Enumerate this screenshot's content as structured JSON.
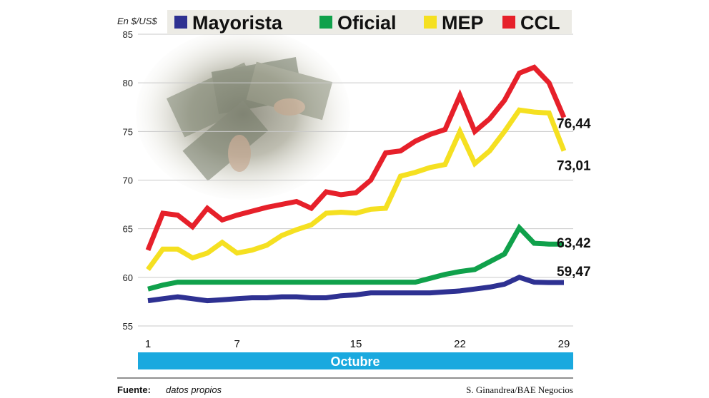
{
  "chart_data": {
    "type": "line",
    "unit_label": "En $/US$",
    "ylim": [
      55,
      85
    ],
    "y_ticks": [
      55,
      60,
      65,
      70,
      75,
      80,
      85
    ],
    "x_ticks": [
      1,
      7,
      15,
      22,
      29
    ],
    "x_category_label": "Octubre",
    "grid": true,
    "legend_position": "top",
    "x": [
      1,
      2,
      3,
      4,
      5,
      6,
      7,
      8,
      9,
      10,
      11,
      12,
      13,
      14,
      15,
      16,
      17,
      18,
      19,
      20,
      21,
      22,
      23,
      24,
      25,
      26,
      27,
      28,
      29
    ],
    "series": [
      {
        "name": "Mayorista",
        "color": "#2e3192",
        "end_label": "59,47",
        "values": [
          57.6,
          57.8,
          58.0,
          57.8,
          57.6,
          57.7,
          57.8,
          57.9,
          57.9,
          58.0,
          58.0,
          57.9,
          57.9,
          58.1,
          58.2,
          58.4,
          58.4,
          58.4,
          58.4,
          58.4,
          58.5,
          58.6,
          58.8,
          59.0,
          59.3,
          60.0,
          59.5,
          59.47,
          59.47
        ]
      },
      {
        "name": "Oficial",
        "color": "#10a14b",
        "end_label": "63,42",
        "values": [
          58.8,
          59.2,
          59.5,
          59.5,
          59.5,
          59.5,
          59.5,
          59.5,
          59.5,
          59.5,
          59.5,
          59.5,
          59.5,
          59.5,
          59.5,
          59.5,
          59.5,
          59.5,
          59.5,
          59.9,
          60.3,
          60.6,
          60.8,
          61.6,
          62.4,
          65.1,
          63.5,
          63.42,
          63.42
        ]
      },
      {
        "name": "MEP",
        "color": "#f5e021",
        "end_label": "73,01",
        "values": [
          60.8,
          62.9,
          62.9,
          62.0,
          62.5,
          63.6,
          62.5,
          62.8,
          63.3,
          64.3,
          64.9,
          65.4,
          66.6,
          66.7,
          66.6,
          67.0,
          67.1,
          70.4,
          70.8,
          71.3,
          71.6,
          75.0,
          71.7,
          73.0,
          75.0,
          77.2,
          77.0,
          76.9,
          73.01
        ]
      },
      {
        "name": "CCL",
        "color": "#e6202a",
        "end_label": "76,44",
        "values": [
          62.8,
          66.6,
          66.4,
          65.2,
          67.1,
          65.9,
          66.4,
          66.8,
          67.2,
          67.5,
          67.8,
          67.1,
          68.8,
          68.5,
          68.7,
          70.0,
          72.8,
          73.0,
          74.0,
          74.7,
          75.2,
          78.7,
          75.0,
          76.3,
          78.2,
          81.0,
          81.6,
          80.0,
          76.44
        ]
      }
    ]
  },
  "footer": {
    "source_label": "Fuente:",
    "source_value": "datos propios",
    "credit": "S. Ginandrea/BAE Negocios"
  }
}
